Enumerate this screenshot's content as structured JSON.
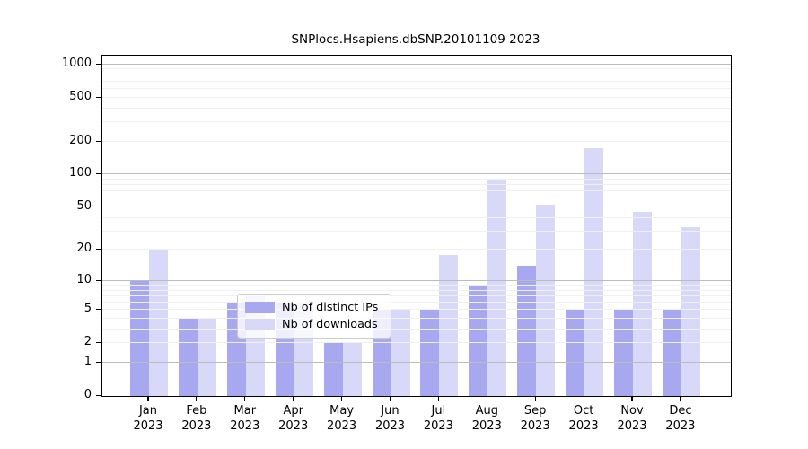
{
  "title": "SNPlocs.Hsapiens.dbSNP.20101109 2023",
  "chart_data": {
    "type": "bar",
    "scale": "log1p",
    "title": "SNPlocs.Hsapiens.dbSNP.20101109 2023",
    "categories": [
      "Jan",
      "Feb",
      "Mar",
      "Apr",
      "May",
      "Jun",
      "Jul",
      "Aug",
      "Sep",
      "Oct",
      "Nov",
      "Dec"
    ],
    "year": "2023",
    "series": [
      {
        "name": "Nb of distinct IPs",
        "color": "#a8a8f0",
        "values": [
          10,
          4,
          6,
          6,
          2,
          5,
          5,
          9,
          14,
          5,
          5,
          5
        ]
      },
      {
        "name": "Nb of downloads",
        "color": "#d8d8f8",
        "values": [
          20,
          4,
          7,
          6,
          2,
          5,
          18,
          90,
          53,
          175,
          45,
          33
        ]
      }
    ],
    "y_ticks": [
      1000,
      500,
      200,
      100,
      50,
      20,
      10,
      5,
      2,
      1,
      0
    ],
    "grid_major": [
      1,
      10,
      100,
      1000
    ],
    "grid_minor": [
      2,
      3,
      4,
      5,
      6,
      7,
      8,
      9,
      20,
      30,
      40,
      50,
      60,
      70,
      80,
      90,
      200,
      300,
      400,
      500,
      600,
      700,
      800,
      900
    ],
    "ylim": [
      0,
      1200
    ],
    "xlabel": "",
    "ylabel": "",
    "grid": true,
    "legend_position": "lower center"
  },
  "legend": {
    "items": [
      {
        "label": "Nb of distinct IPs",
        "color": "#a8a8f0"
      },
      {
        "label": "Nb of downloads",
        "color": "#d8d8f8"
      }
    ]
  }
}
